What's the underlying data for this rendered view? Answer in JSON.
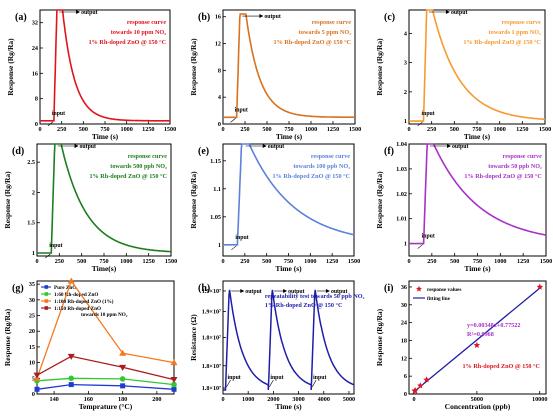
{
  "panels": [
    {
      "label": "(a)",
      "ylabel": "Response (Rg/Ra)",
      "xlabel": "Time (s)",
      "color": "#e0141e",
      "texts": [
        "response curve",
        "towards 10 ppm NO₂",
        "1% Rh-doped ZnO @ 150 °C"
      ],
      "input": "input",
      "output": "output"
    },
    {
      "label": "(b)",
      "ylabel": "Response (Rg/Ra)",
      "xlabel": "Time (s)",
      "color": "#d8721e",
      "texts": [
        "response curve",
        "towards 5 ppm NO₂",
        "1% Rh-doped ZnO @ 150 °C"
      ],
      "input": "input",
      "output": "output"
    },
    {
      "label": "(c)",
      "ylabel": "Response (Rg/Ra)",
      "xlabel": "Time (s)",
      "color": "#f79a2e",
      "texts": [
        "response curve",
        "towards 1 ppm NO₂",
        "1% Rh-doped ZnO @ 150 °C"
      ],
      "input": "input",
      "output": "output"
    },
    {
      "label": "(d)",
      "ylabel": "Response (Rg/Ra)",
      "xlabel": "Time(s)",
      "color": "#1e7d1e",
      "texts": [
        "response curve",
        "towards 500 ppb NO₂",
        "1% Rh-doped ZnO @ 150 °C"
      ],
      "input": "input",
      "output": "output"
    },
    {
      "label": "(e)",
      "ylabel": "Response (Rg/Ra)",
      "xlabel": "Time (s)",
      "color": "#5a82dc",
      "texts": [
        "response curve",
        "towards 100 ppb NO₂",
        "1% Rh-doped ZnO @ 150 °C"
      ],
      "input": "input",
      "output": "output"
    },
    {
      "label": "(f)",
      "ylabel": "Response (Rg/Ra)",
      "xlabel": "Time (s)",
      "color": "#a632c8",
      "texts": [
        "response curve",
        "towards 50 ppb NO₂",
        "1% Rh-doped ZnO @ 150 °C"
      ],
      "input": "input",
      "output": "output"
    },
    {
      "label": "(g)",
      "ylabel": "Response (Rg/Ra)",
      "xlabel": "Temprature (°C)",
      "note": "towards 10 ppm NO₂"
    },
    {
      "label": "(h)",
      "ylabel": "Resistance (Ω)",
      "xlabel": "Time (s)",
      "color": "#1e1eaa",
      "texts": [
        "repeatability test towards 50 ppb NO₂",
        "1% Rh-doped ZnO @ 150 °C"
      ],
      "input": "input",
      "output": "output"
    },
    {
      "label": "(i)",
      "ylabel": "Response (Rg/Ra)",
      "xlabel": "Concentration (ppb)",
      "legend": [
        "response values",
        "fitting line"
      ],
      "equation": [
        "y=0.00348x+0.77522",
        "R²=0.9968"
      ],
      "note": "1% Rh-doped ZnO @ 150 °C",
      "marker_color": "#e0141e",
      "line_color": "#1e1eaa"
    }
  ],
  "chart_data": [
    {
      "type": "line",
      "panel": "a",
      "xlim": [
        0,
        1500
      ],
      "ylim": [
        0,
        36
      ],
      "xticks": [
        0,
        250,
        500,
        750,
        1000,
        1250,
        1500
      ],
      "yticks": [
        0,
        8,
        16,
        24,
        32
      ],
      "baseline": 1,
      "peak": 36,
      "t_on": 160,
      "t_off": 260,
      "tau": 140,
      "series": [
        {
          "name": "",
          "color": "#e0141e"
        }
      ]
    },
    {
      "type": "line",
      "panel": "b",
      "xlim": [
        0,
        1500
      ],
      "ylim": [
        0,
        17
      ],
      "xticks": [
        0,
        250,
        500,
        750,
        1000,
        1250,
        1500
      ],
      "yticks": [
        0,
        4,
        8,
        12,
        16
      ],
      "baseline": 1,
      "peak": 16.4,
      "t_on": 155,
      "t_off": 260,
      "tau": 160
    },
    {
      "type": "line",
      "panel": "c",
      "xlim": [
        0,
        1500
      ],
      "ylim": [
        0.9,
        4.8
      ],
      "xticks": [
        0,
        250,
        500,
        750,
        1000,
        1250,
        1500
      ],
      "yticks": [
        1,
        2,
        3,
        4
      ],
      "baseline": 1,
      "peak": 4.8,
      "t_on": 160,
      "t_off": 260,
      "tau": 300
    },
    {
      "type": "line",
      "panel": "d",
      "xlim": [
        0,
        1500
      ],
      "ylim": [
        0.95,
        2.8
      ],
      "xticks": [
        0,
        250,
        500,
        750,
        1000,
        1250,
        1500
      ],
      "yticks": [
        1.0,
        1.5,
        2.0,
        2.5
      ],
      "baseline": 1,
      "peak": 2.8,
      "t_on": 160,
      "t_off": 270,
      "tau": 280
    },
    {
      "type": "line",
      "panel": "e",
      "xlim": [
        0,
        1500
      ],
      "ylim": [
        0.98,
        1.18
      ],
      "xticks": [
        0,
        250,
        500,
        750,
        1000,
        1250,
        1500
      ],
      "yticks": [
        1.0,
        1.05,
        1.1,
        1.15
      ],
      "baseline": 1,
      "peak": 1.18,
      "t_on": 165,
      "t_off": 300,
      "tau": 520
    },
    {
      "type": "line",
      "panel": "f",
      "xlim": [
        0,
        1500
      ],
      "ylim": [
        0.995,
        1.04
      ],
      "xticks": [
        0,
        250,
        500,
        750,
        1000,
        1250,
        1500
      ],
      "yticks": [
        1.0,
        1.01,
        1.02,
        1.03,
        1.04
      ],
      "baseline": 1,
      "peak": 1.04,
      "t_on": 160,
      "t_off": 270,
      "tau": 500
    },
    {
      "type": "line",
      "panel": "g",
      "xlim": [
        130,
        210
      ],
      "ylim": [
        0,
        36
      ],
      "xticks": [
        140,
        160,
        180,
        200
      ],
      "yticks": [
        0,
        5,
        10,
        15,
        20,
        25,
        30,
        35
      ],
      "x": [
        130,
        150,
        180,
        210
      ],
      "series": [
        {
          "name": "Pure ZnO",
          "color": "#1e3cd2",
          "marker": "square",
          "values": [
            1.5,
            3.0,
            2.6,
            1.5
          ]
        },
        {
          "name": "1:60 Rh-doped ZnO",
          "color": "#32c832",
          "marker": "circle",
          "values": [
            4.2,
            5.0,
            4.8,
            3.0
          ]
        },
        {
          "name": "1:100 Rh-doped ZnO (1%)",
          "color": "#f5781e",
          "marker": "triangle-up",
          "values": [
            5.0,
            36.0,
            13.0,
            10.0
          ]
        },
        {
          "name": "1:150 Rh-doped ZnO",
          "color": "#aa1e1e",
          "marker": "triangle-down",
          "values": [
            6.0,
            12.0,
            8.5,
            4.6
          ]
        }
      ]
    },
    {
      "type": "line",
      "panel": "h",
      "xlim": [
        0,
        5200
      ],
      "xticks": [
        0,
        1000,
        2000,
        3000,
        4000,
        5000
      ],
      "yticks": [
        "1.8×10⁷",
        "1.8×10⁷",
        "1.8×10⁷",
        "1.9×10⁷",
        "1.9×10⁷"
      ],
      "cycles": [
        {
          "t_on": 100,
          "t_off": 250,
          "t_end": 1800
        },
        {
          "t_on": 1800,
          "t_off": 1950,
          "t_end": 3500
        },
        {
          "t_on": 3500,
          "t_off": 3650,
          "t_end": 5200
        }
      ],
      "series": [
        {
          "name": "",
          "color": "#1e1eaa"
        }
      ]
    },
    {
      "type": "scatter",
      "panel": "i",
      "xlim": [
        -400,
        10500
      ],
      "ylim": [
        0,
        38
      ],
      "xticks": [
        0,
        5000,
        10000
      ],
      "yticks": [
        0,
        6,
        12,
        18,
        24,
        30,
        36
      ],
      "points": [
        {
          "x": 50,
          "y": 1.04
        },
        {
          "x": 100,
          "y": 1.18
        },
        {
          "x": 500,
          "y": 2.8
        },
        {
          "x": 1000,
          "y": 4.8
        },
        {
          "x": 5000,
          "y": 16.4
        },
        {
          "x": 10000,
          "y": 36
        }
      ],
      "fit": {
        "slope": 0.00348,
        "intercept": 0.77522
      }
    }
  ]
}
